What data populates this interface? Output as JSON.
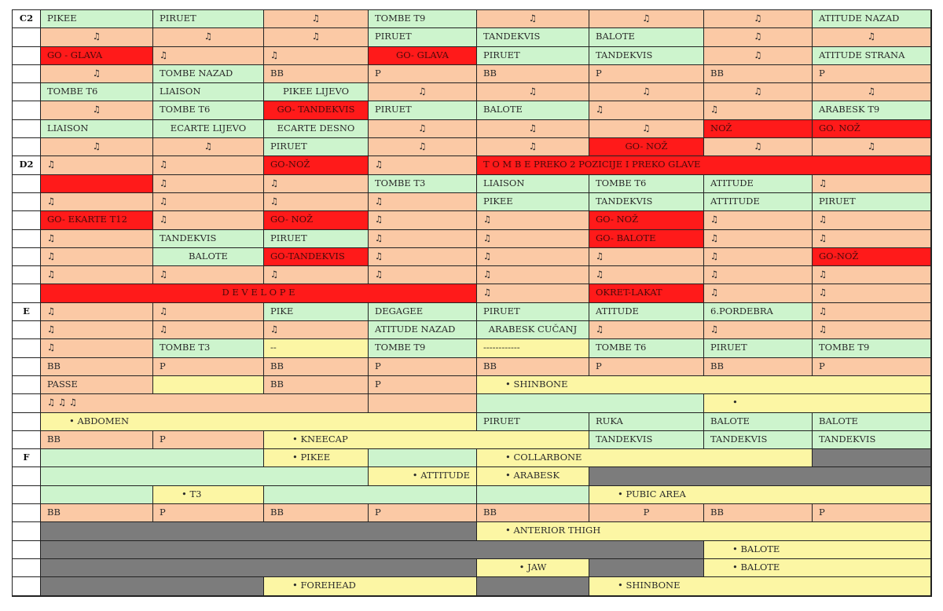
{
  "sections": {
    "c2": "C2",
    "d2": "D2",
    "e": "E",
    "f": "F"
  },
  "colors": {
    "orange": "#fbc9a5",
    "green": "#cdf4cd",
    "red": "#ff1a1a",
    "yellow": "#fcf6a4",
    "gray": "#7c7c7c"
  },
  "rows": [
    [
      {
        "t": "C2",
        "bg": "label"
      },
      {
        "t": "PIKEE",
        "bg": "gr"
      },
      {
        "t": "PIRUET",
        "bg": "gr"
      },
      {
        "t": "♫",
        "bg": "or",
        "a": "c"
      },
      {
        "t": "TOMBE T9",
        "bg": "gr"
      },
      {
        "t": "♫",
        "bg": "or",
        "a": "c"
      },
      {
        "t": "♫",
        "bg": "or",
        "a": "c"
      },
      {
        "t": "♫",
        "bg": "or",
        "a": "c"
      },
      {
        "t": "ATITUDE NAZAD",
        "bg": "gr"
      }
    ],
    [
      {
        "t": "",
        "bg": "label"
      },
      {
        "t": "♫",
        "bg": "or",
        "a": "c"
      },
      {
        "t": "♫",
        "bg": "or",
        "a": "c"
      },
      {
        "t": "♫",
        "bg": "or",
        "a": "c"
      },
      {
        "t": "PIRUET",
        "bg": "gr"
      },
      {
        "t": "TANDEKVIS",
        "bg": "gr"
      },
      {
        "t": "BALOTE",
        "bg": "gr"
      },
      {
        "t": "♫",
        "bg": "or",
        "a": "c"
      },
      {
        "t": "♫",
        "bg": "or",
        "a": "c"
      }
    ],
    [
      {
        "t": "",
        "bg": "label"
      },
      {
        "t": "GO - GLAVA",
        "bg": "rd"
      },
      {
        "t": "♫",
        "bg": "or"
      },
      {
        "t": "♫",
        "bg": "or"
      },
      {
        "t": "GO-   GLAVA",
        "bg": "rd",
        "a": "c"
      },
      {
        "t": "PIRUET",
        "bg": "gr"
      },
      {
        "t": "TANDEKVIS",
        "bg": "gr"
      },
      {
        "t": "♫",
        "bg": "or",
        "a": "c"
      },
      {
        "t": "ATITUDE STRANA",
        "bg": "gr"
      }
    ],
    [
      {
        "t": "",
        "bg": "label"
      },
      {
        "t": "♫",
        "bg": "or",
        "a": "c"
      },
      {
        "t": "TOMBE NAZAD",
        "bg": "gr"
      },
      {
        "t": "BB",
        "bg": "or"
      },
      {
        "t": "P",
        "bg": "or"
      },
      {
        "t": "BB",
        "bg": "or"
      },
      {
        "t": "P",
        "bg": "or"
      },
      {
        "t": "BB",
        "bg": "or"
      },
      {
        "t": "P",
        "bg": "or"
      }
    ],
    [
      {
        "t": "",
        "bg": "label"
      },
      {
        "t": "TOMBE T6",
        "bg": "gr"
      },
      {
        "t": "LIAISON",
        "bg": "gr"
      },
      {
        "t": "PIKEE LIJEVO",
        "bg": "gr",
        "a": "c"
      },
      {
        "t": "♫",
        "bg": "or",
        "a": "c"
      },
      {
        "t": "♫",
        "bg": "or",
        "a": "c"
      },
      {
        "t": "♫",
        "bg": "or",
        "a": "c"
      },
      {
        "t": "♫",
        "bg": "or",
        "a": "c"
      },
      {
        "t": "♫",
        "bg": "or",
        "a": "c"
      }
    ],
    [
      {
        "t": "",
        "bg": "label"
      },
      {
        "t": "♫",
        "bg": "or",
        "a": "c"
      },
      {
        "t": "TOMBE T6",
        "bg": "gr"
      },
      {
        "t": "GO- TANDEKVIS",
        "bg": "rd",
        "a": "c"
      },
      {
        "t": "PIRUET",
        "bg": "gr"
      },
      {
        "t": "BALOTE",
        "bg": "gr"
      },
      {
        "t": "♫",
        "bg": "or"
      },
      {
        "t": "♫",
        "bg": "or"
      },
      {
        "t": "ARABESK T9",
        "bg": "gr"
      }
    ],
    [
      {
        "t": "",
        "bg": "label"
      },
      {
        "t": "LIAISON",
        "bg": "gr"
      },
      {
        "t": "ECARTE LIJEVO",
        "bg": "gr",
        "a": "c"
      },
      {
        "t": "ECARTE DESNO",
        "bg": "gr",
        "a": "c"
      },
      {
        "t": "♫",
        "bg": "or",
        "a": "c"
      },
      {
        "t": "♫",
        "bg": "or",
        "a": "c"
      },
      {
        "t": "♫",
        "bg": "or",
        "a": "c"
      },
      {
        "t": "NOŽ",
        "bg": "rd"
      },
      {
        "t": "GO. NOŽ",
        "bg": "rd"
      }
    ],
    [
      {
        "t": "",
        "bg": "label"
      },
      {
        "t": "♫",
        "bg": "or",
        "a": "c"
      },
      {
        "t": "♫",
        "bg": "or",
        "a": "c"
      },
      {
        "t": "PIRUET",
        "bg": "gr"
      },
      {
        "t": "♫",
        "bg": "or",
        "a": "c"
      },
      {
        "t": "♫",
        "bg": "or",
        "a": "c"
      },
      {
        "t": "GO- NOŽ",
        "bg": "rd",
        "a": "c"
      },
      {
        "t": "♫",
        "bg": "or",
        "a": "c"
      },
      {
        "t": "♫",
        "bg": "or",
        "a": "c"
      }
    ],
    [
      {
        "t": "D2",
        "bg": "label"
      },
      {
        "t": "♫",
        "bg": "or"
      },
      {
        "t": "♫",
        "bg": "or"
      },
      {
        "t": "GO-NOŽ",
        "bg": "rd"
      },
      {
        "t": "♫",
        "bg": "or"
      },
      {
        "t": "T    O    M    B    E    PREKO 2 POZICIJE I  PREKO GLAVE",
        "bg": "rd",
        "span": 4
      }
    ],
    [
      {
        "t": "",
        "bg": "label"
      },
      {
        "t": "",
        "bg": "rd"
      },
      {
        "t": "♫",
        "bg": "or"
      },
      {
        "t": "♫",
        "bg": "or"
      },
      {
        "t": "TOMBE T3",
        "bg": "gr"
      },
      {
        "t": "LIAISON",
        "bg": "gr"
      },
      {
        "t": "TOMBE T6",
        "bg": "gr"
      },
      {
        "t": "ATITUDE",
        "bg": "gr"
      },
      {
        "t": "♫",
        "bg": "or"
      }
    ],
    [
      {
        "t": "",
        "bg": "label"
      },
      {
        "t": "♫",
        "bg": "or"
      },
      {
        "t": "♫",
        "bg": "or"
      },
      {
        "t": "♫",
        "bg": "or"
      },
      {
        "t": "♫",
        "bg": "or"
      },
      {
        "t": "PIKEE",
        "bg": "gr"
      },
      {
        "t": "TANDEKVIS",
        "bg": "gr"
      },
      {
        "t": "ATTITUDE",
        "bg": "gr"
      },
      {
        "t": "PIRUET",
        "bg": "gr"
      }
    ],
    [
      {
        "t": "",
        "bg": "label"
      },
      {
        "t": "GO- EKARTE T12",
        "bg": "rd"
      },
      {
        "t": "♫",
        "bg": "or"
      },
      {
        "t": "GO- NOŽ",
        "bg": "rd"
      },
      {
        "t": "♫",
        "bg": "or"
      },
      {
        "t": "♫",
        "bg": "or"
      },
      {
        "t": "GO- NOŽ",
        "bg": "rd"
      },
      {
        "t": "♫",
        "bg": "or"
      },
      {
        "t": "♫",
        "bg": "or"
      }
    ],
    [
      {
        "t": "",
        "bg": "label"
      },
      {
        "t": "♫",
        "bg": "or"
      },
      {
        "t": "TANDEKVIS",
        "bg": "gr"
      },
      {
        "t": "PIRUET",
        "bg": "gr"
      },
      {
        "t": "♫",
        "bg": "or"
      },
      {
        "t": "♫",
        "bg": "or"
      },
      {
        "t": "GO- BALOTE",
        "bg": "rd"
      },
      {
        "t": "♫",
        "bg": "or"
      },
      {
        "t": "♫",
        "bg": "or"
      }
    ],
    [
      {
        "t": "",
        "bg": "label"
      },
      {
        "t": "♫",
        "bg": "or"
      },
      {
        "t": "BALOTE",
        "bg": "gr",
        "a": "c"
      },
      {
        "t": "GO-TANDEKVIS",
        "bg": "rd"
      },
      {
        "t": "♫",
        "bg": "or"
      },
      {
        "t": "♫",
        "bg": "or"
      },
      {
        "t": "♫",
        "bg": "or"
      },
      {
        "t": "♫",
        "bg": "or"
      },
      {
        "t": "GO-NOŽ",
        "bg": "rd"
      }
    ],
    [
      {
        "t": "",
        "bg": "label"
      },
      {
        "t": "♫",
        "bg": "or"
      },
      {
        "t": "♫",
        "bg": "or"
      },
      {
        "t": "♫",
        "bg": "or"
      },
      {
        "t": "♫",
        "bg": "or"
      },
      {
        "t": "♫",
        "bg": "or"
      },
      {
        "t": "♫",
        "bg": "or"
      },
      {
        "t": "♫",
        "bg": "or"
      },
      {
        "t": "♫",
        "bg": "or"
      }
    ],
    [
      {
        "t": "",
        "bg": "label"
      },
      {
        "t": "D  E  V  E  L  O  P  E",
        "bg": "rd",
        "span": 4,
        "a": "c"
      },
      {
        "t": "♫",
        "bg": "or"
      },
      {
        "t": "OKRET-LAKAT",
        "bg": "rd"
      },
      {
        "t": "♫",
        "bg": "or"
      },
      {
        "t": "♫",
        "bg": "or"
      }
    ],
    [
      {
        "t": "E",
        "bg": "label"
      },
      {
        "t": "♫",
        "bg": "or"
      },
      {
        "t": "♫",
        "bg": "or"
      },
      {
        "t": "PIKE",
        "bg": "gr"
      },
      {
        "t": "DEGAGEE",
        "bg": "gr"
      },
      {
        "t": "PIRUET",
        "bg": "gr"
      },
      {
        "t": "ATITUDE",
        "bg": "gr"
      },
      {
        "t": "6.PORDEBRA",
        "bg": "gr"
      },
      {
        "t": "♫",
        "bg": "or"
      }
    ],
    [
      {
        "t": "",
        "bg": "label"
      },
      {
        "t": "♫",
        "bg": "or"
      },
      {
        "t": "♫",
        "bg": "or"
      },
      {
        "t": "♫",
        "bg": "or"
      },
      {
        "t": "ATITUDE NAZAD",
        "bg": "gr"
      },
      {
        "t": "ARABESK CUČANJ",
        "bg": "gr",
        "a": "c"
      },
      {
        "t": "♫",
        "bg": "or"
      },
      {
        "t": "♫",
        "bg": "or"
      },
      {
        "t": "♫",
        "bg": "or"
      }
    ],
    [
      {
        "t": "",
        "bg": "label"
      },
      {
        "t": "♫",
        "bg": "or"
      },
      {
        "t": "TOMBE T3",
        "bg": "gr"
      },
      {
        "t": "--",
        "bg": "ye"
      },
      {
        "t": "TOMBE T9",
        "bg": "gr"
      },
      {
        "t": "------------",
        "bg": "ye"
      },
      {
        "t": "TOMBE  T6",
        "bg": "gr"
      },
      {
        "t": "PIRUET",
        "bg": "gr"
      },
      {
        "t": "TOMBE T9",
        "bg": "gr"
      }
    ],
    [
      {
        "t": "",
        "bg": "label"
      },
      {
        "t": "BB",
        "bg": "or"
      },
      {
        "t": "P",
        "bg": "or"
      },
      {
        "t": "BB",
        "bg": "or"
      },
      {
        "t": "P",
        "bg": "or"
      },
      {
        "t": "BB",
        "bg": "or"
      },
      {
        "t": "P",
        "bg": "or"
      },
      {
        "t": "BB",
        "bg": "or"
      },
      {
        "t": "P",
        "bg": "or"
      }
    ],
    [
      {
        "t": "",
        "bg": "label"
      },
      {
        "t": "PASSE",
        "bg": "or"
      },
      {
        "t": "",
        "bg": "ye"
      },
      {
        "t": "BB",
        "bg": "or"
      },
      {
        "t": "P",
        "bg": "or"
      },
      {
        "t": "•    SHINBONE",
        "bg": "ye",
        "span": 4,
        "indent": true
      }
    ],
    [
      {
        "t": "",
        "bg": "label"
      },
      {
        "t": "♫                       ♫                        ♫",
        "bg": "or",
        "span": 3
      },
      {
        "t": "",
        "bg": "or"
      },
      {
        "t": "",
        "bg": "gr",
        "span": 2
      },
      {
        "t": "•",
        "bg": "ye",
        "span": 2,
        "indent": true
      }
    ],
    [
      {
        "t": "",
        "bg": "label"
      },
      {
        "t": "•    ABDOMEN",
        "bg": "ye",
        "span": 4,
        "indent": true
      },
      {
        "t": "PIRUET",
        "bg": "gr"
      },
      {
        "t": "RUKA",
        "bg": "gr"
      },
      {
        "t": "BALOTE",
        "bg": "gr"
      },
      {
        "t": "BALOTE",
        "bg": "gr"
      }
    ],
    [
      {
        "t": "",
        "bg": "label"
      },
      {
        "t": "BB",
        "bg": "or"
      },
      {
        "t": "P",
        "bg": "or"
      },
      {
        "t": "•    KNEECAP",
        "bg": "ye",
        "span": 3,
        "indent": true
      },
      {
        "t": "TANDEKVIS",
        "bg": "gr"
      },
      {
        "t": "TANDEKVIS",
        "bg": "gr"
      },
      {
        "t": "TANDEKVIS",
        "bg": "gr"
      }
    ],
    [
      {
        "t": "F",
        "bg": "label"
      },
      {
        "t": "",
        "bg": "gr",
        "span": 2
      },
      {
        "t": "•    PIKEE",
        "bg": "ye",
        "indent": true
      },
      {
        "t": "",
        "bg": "gr"
      },
      {
        "t": "•    COLLARBONE",
        "bg": "ye",
        "span": 3,
        "indent": true
      },
      {
        "t": "",
        "bg": "dg"
      }
    ],
    [
      {
        "t": "",
        "bg": "label"
      },
      {
        "t": "",
        "bg": "gr",
        "span": 3
      },
      {
        "t": "•    ATTITUDE",
        "bg": "ye",
        "a": "r"
      },
      {
        "t": "•    ARABESK",
        "bg": "ye",
        "indent": true
      },
      {
        "t": "",
        "bg": "dg",
        "span": 3
      }
    ],
    [
      {
        "t": "",
        "bg": "label"
      },
      {
        "t": "",
        "bg": "gr"
      },
      {
        "t": "•    T3",
        "bg": "ye",
        "indent": true
      },
      {
        "t": "",
        "bg": "gr",
        "span": 2
      },
      {
        "t": "",
        "bg": "gr"
      },
      {
        "t": "•    PUBIC AREA",
        "bg": "ye",
        "span": 3,
        "indent": true
      }
    ],
    [
      {
        "t": "",
        "bg": "label"
      },
      {
        "t": "BB",
        "bg": "or"
      },
      {
        "t": "P",
        "bg": "or"
      },
      {
        "t": "BB",
        "bg": "or"
      },
      {
        "t": "P",
        "bg": "or"
      },
      {
        "t": "BB",
        "bg": "or"
      },
      {
        "t": "P",
        "bg": "or",
        "a": "c"
      },
      {
        "t": "BB",
        "bg": "or"
      },
      {
        "t": "P",
        "bg": "or"
      }
    ],
    [
      {
        "t": "",
        "bg": "label"
      },
      {
        "t": "",
        "bg": "dg",
        "span": 4
      },
      {
        "t": "•    ANTERIOR THIGH",
        "bg": "ye",
        "span": 4,
        "indent": true
      }
    ],
    [
      {
        "t": "",
        "bg": "label"
      },
      {
        "t": "",
        "bg": "dg",
        "span": 6
      },
      {
        "t": "•    BALOTE",
        "bg": "ye",
        "span": 2,
        "indent": true
      }
    ],
    [
      {
        "t": "",
        "bg": "label"
      },
      {
        "t": "",
        "bg": "dg",
        "span": 4
      },
      {
        "t": "•    JAW",
        "bg": "ye",
        "a": "c"
      },
      {
        "t": "",
        "bg": "dg"
      },
      {
        "t": "•    BALOTE",
        "bg": "ye",
        "span": 2,
        "indent": true
      }
    ],
    [
      {
        "t": "",
        "bg": "label"
      },
      {
        "t": "",
        "bg": "dg",
        "span": 2
      },
      {
        "t": "•    FOREHEAD",
        "bg": "ye",
        "span": 2,
        "indent": true
      },
      {
        "t": "",
        "bg": "dg"
      },
      {
        "t": "•    SHINBONE",
        "bg": "ye",
        "span": 3,
        "indent": true
      }
    ]
  ]
}
